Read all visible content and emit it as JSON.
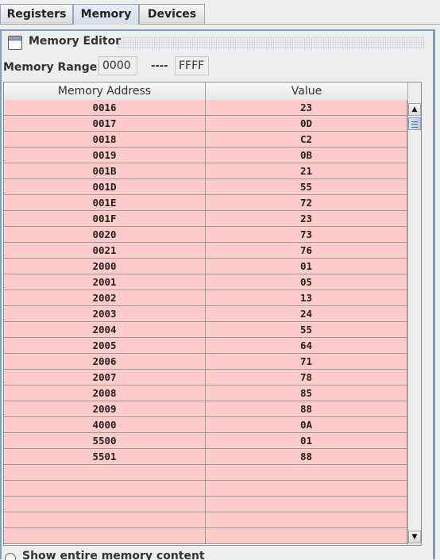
{
  "tabs": [
    {
      "label": "Registers"
    },
    {
      "label": "Memory"
    },
    {
      "label": "Devices"
    }
  ],
  "editor": {
    "title": "Memory Editor",
    "range_label": "Memory Range:",
    "range_start": "0000",
    "range_separator": "----",
    "range_end": "FFFF"
  },
  "table": {
    "headers": [
      "Memory Address",
      "Value"
    ],
    "rows": [
      {
        "address": "0016",
        "value": "23"
      },
      {
        "address": "0017",
        "value": "0D"
      },
      {
        "address": "0018",
        "value": "C2"
      },
      {
        "address": "0019",
        "value": "0B"
      },
      {
        "address": "001B",
        "value": "21"
      },
      {
        "address": "001D",
        "value": "55"
      },
      {
        "address": "001E",
        "value": "72"
      },
      {
        "address": "001F",
        "value": "23"
      },
      {
        "address": "0020",
        "value": "73"
      },
      {
        "address": "0021",
        "value": "76"
      },
      {
        "address": "2000",
        "value": "01"
      },
      {
        "address": "2001",
        "value": "05"
      },
      {
        "address": "2002",
        "value": "13"
      },
      {
        "address": "2003",
        "value": "24"
      },
      {
        "address": "2004",
        "value": "55"
      },
      {
        "address": "2005",
        "value": "64"
      },
      {
        "address": "2006",
        "value": "71"
      },
      {
        "address": "2007",
        "value": "78"
      },
      {
        "address": "2008",
        "value": "85"
      },
      {
        "address": "2009",
        "value": "88"
      },
      {
        "address": "4000",
        "value": "0A"
      },
      {
        "address": "5500",
        "value": "01"
      },
      {
        "address": "5501",
        "value": "88"
      },
      {
        "address": "",
        "value": ""
      },
      {
        "address": "",
        "value": ""
      },
      {
        "address": "",
        "value": ""
      },
      {
        "address": "",
        "value": ""
      },
      {
        "address": "",
        "value": ""
      }
    ]
  },
  "bottom": {
    "show_all_label": "Show entire memory content"
  },
  "colors": {
    "row_background": "#ffcaca",
    "frame_border": "#7f9ec6"
  },
  "icons": [
    "window-icon",
    "scroll-up-arrow-icon",
    "scroll-down-arrow-icon"
  ]
}
